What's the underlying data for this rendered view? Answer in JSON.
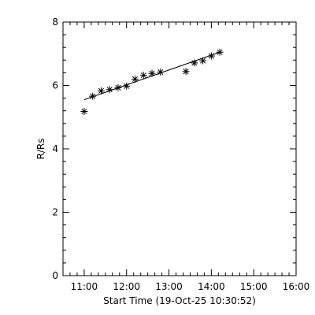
{
  "chart_data": {
    "type": "scatter",
    "title": "",
    "xlabel": "Start Time (19-Oct-25 10:30:52)",
    "ylabel": "R/Rs",
    "x_unit": "time of day (HH:MM)",
    "xlim": [
      "10:30",
      "16:00"
    ],
    "ylim": [
      0,
      8
    ],
    "x_ticks": [
      "11:00",
      "12:00",
      "13:00",
      "14:00",
      "15:00",
      "16:00"
    ],
    "y_ticks": [
      "0",
      "2",
      "4",
      "6",
      "8"
    ],
    "grid": false,
    "marker": "asterisk",
    "series": [
      {
        "points": [
          {
            "x": "11:00",
            "y": 5.18
          },
          {
            "x": "11:12",
            "y": 5.66
          },
          {
            "x": "11:24",
            "y": 5.83
          },
          {
            "x": "11:36",
            "y": 5.87
          },
          {
            "x": "11:48",
            "y": 5.93
          },
          {
            "x": "12:00",
            "y": 5.98
          },
          {
            "x": "12:12",
            "y": 6.2
          },
          {
            "x": "12:24",
            "y": 6.32
          },
          {
            "x": "12:36",
            "y": 6.38
          },
          {
            "x": "12:48",
            "y": 6.42
          },
          {
            "x": "13:24",
            "y": 6.44
          },
          {
            "x": "13:36",
            "y": 6.71
          },
          {
            "x": "13:48",
            "y": 6.78
          },
          {
            "x": "14:00",
            "y": 6.93
          },
          {
            "x": "14:12",
            "y": 7.05
          }
        ]
      }
    ],
    "fit_line": {
      "x": [
        "11:00",
        "14:12"
      ],
      "y": [
        5.55,
        7.05
      ]
    },
    "colors": {
      "axes": "#000000",
      "markers": "#000000",
      "background": "#ffffff"
    }
  }
}
